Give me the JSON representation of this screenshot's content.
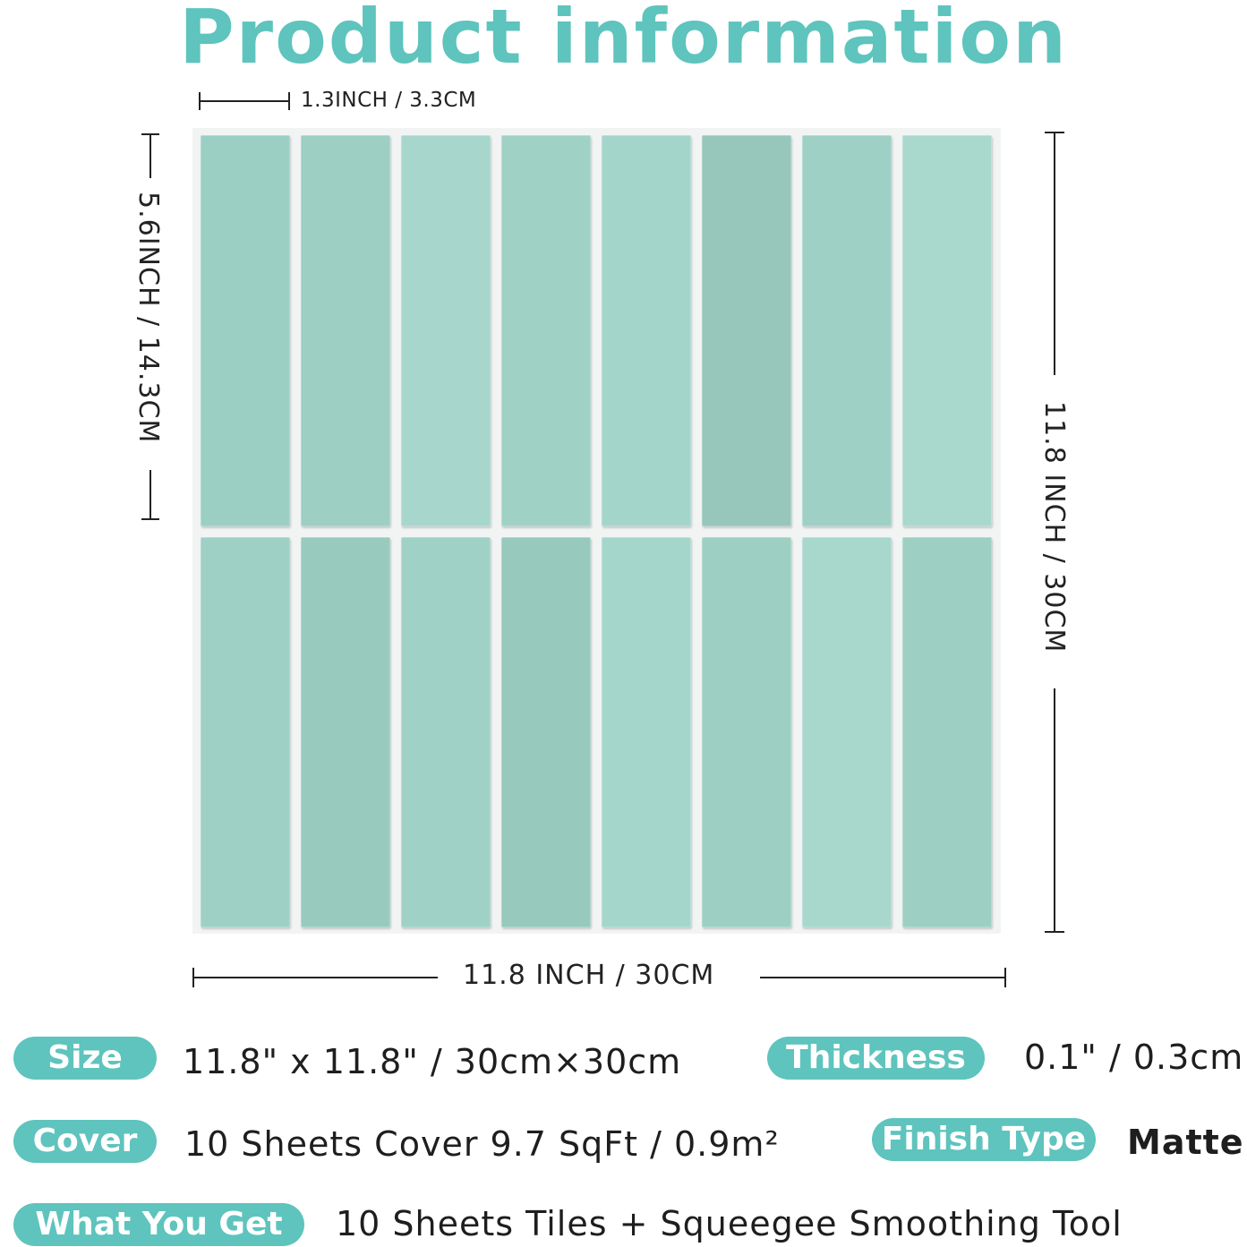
{
  "title": "Product information",
  "dimensions": {
    "tile_width": "1.3INCH / 3.3CM",
    "tile_height": "5.6INCH / 14.3CM",
    "sheet_height": "11.8 INCH / 30CM",
    "sheet_width": "11.8 INCH / 30CM"
  },
  "tile_colors": {
    "row1": [
      "#9bcfc4",
      "#9dcfc3",
      "#a6d6cc",
      "#a0d1c5",
      "#a4d5ca",
      "#97c6ba",
      "#9ed0c5",
      "#a9d8cd"
    ],
    "row2": [
      "#9ed0c5",
      "#98cbbe",
      "#a0d1c6",
      "#97c9bc",
      "#a5d6cb",
      "#9dcfc3",
      "#a8d7cc",
      "#9dcfc2"
    ]
  },
  "specs": {
    "size_label": "Size",
    "size_value": "11.8\" x 11.8\" / 30cm×30cm",
    "thickness_label": "Thickness",
    "thickness_value": "0.1\" / 0.3cm",
    "cover_label": "Cover",
    "cover_value": "10 Sheets Cover 9.7 SqFt / 0.9m²",
    "finish_label": "Finish Type",
    "finish_value": "Matte",
    "get_label": "What You Get",
    "get_value": "10 Sheets Tiles + Squeegee Smoothing Tool"
  },
  "accent_color": "#5ec4bd"
}
